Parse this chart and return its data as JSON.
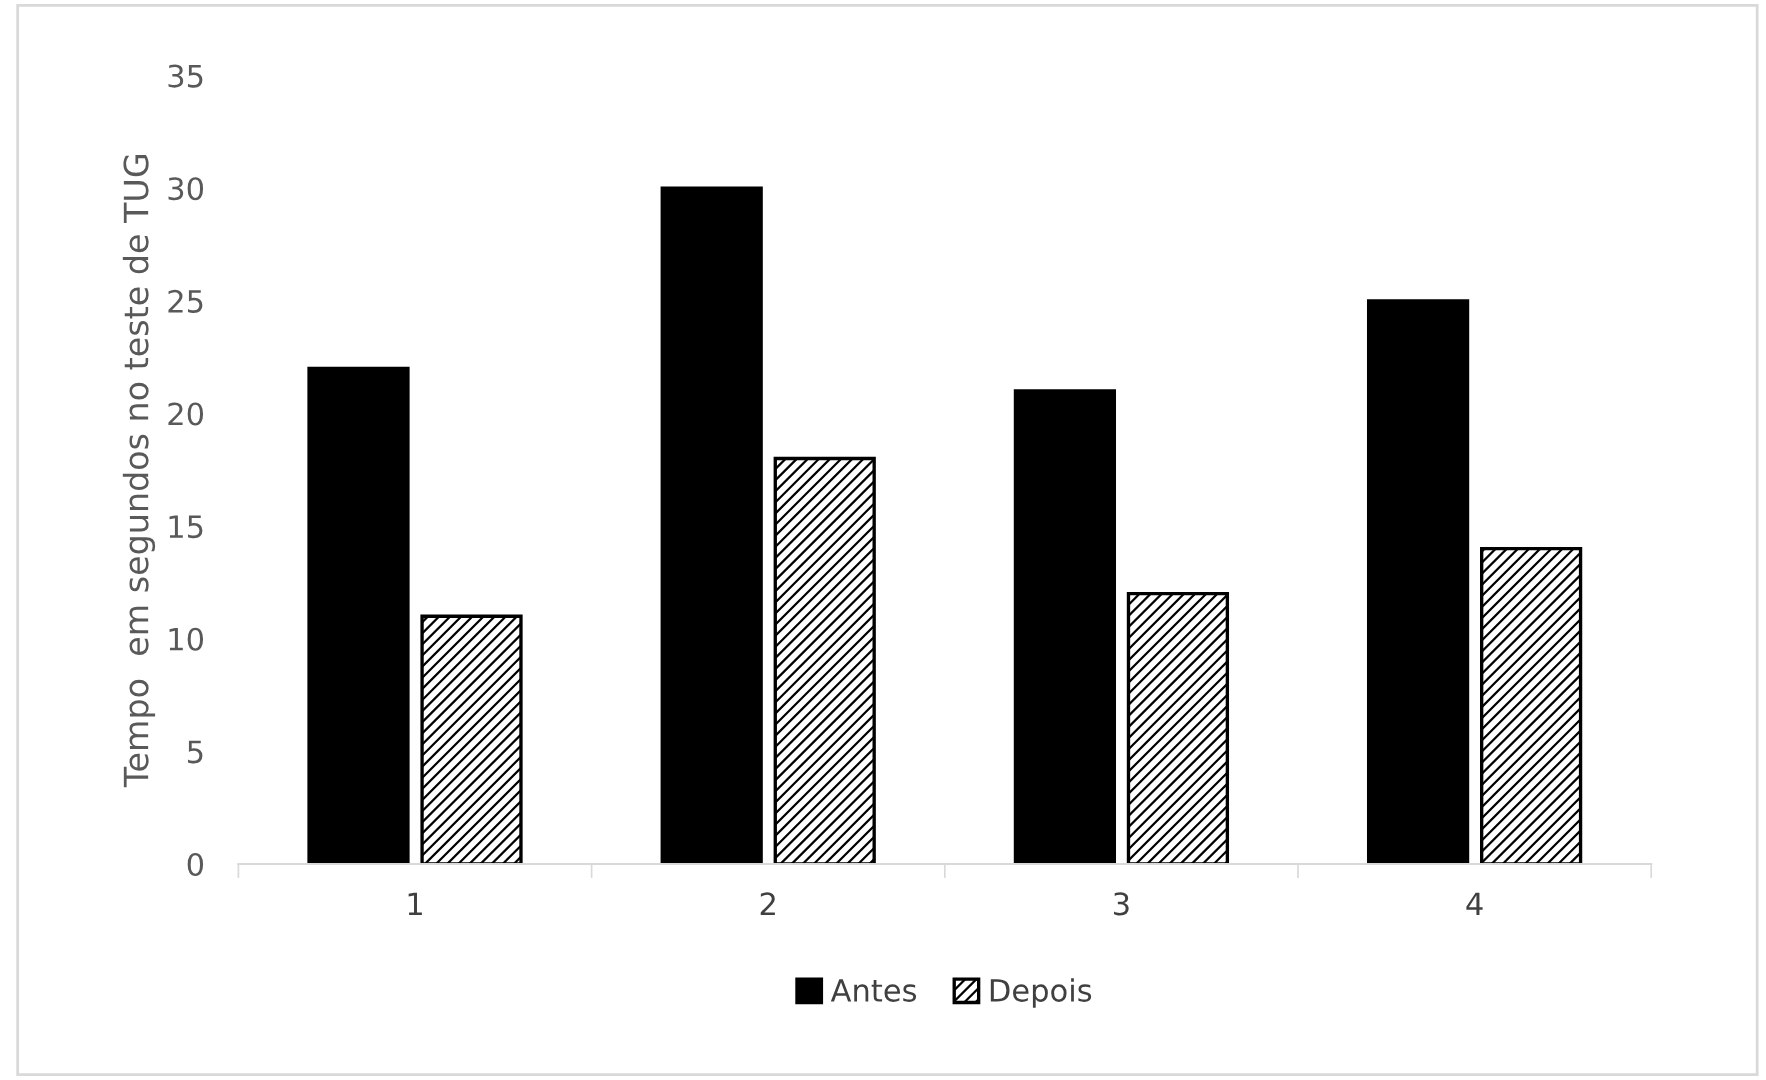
{
  "chart_data": {
    "type": "bar",
    "ylabel": "Tempo  em segundos no teste de TUG",
    "categories": [
      "1",
      "2",
      "3",
      "4"
    ],
    "series": [
      {
        "name": "Antes",
        "color": "#000000",
        "values": [
          22,
          30,
          21,
          25
        ]
      },
      {
        "name": "Depois",
        "color": "#000000",
        "values": [
          11,
          18,
          12,
          14
        ]
      }
    ],
    "ylim": [
      0,
      35
    ],
    "yticks": [
      0,
      5,
      10,
      15,
      20,
      25,
      30,
      35
    ],
    "grid": false,
    "legend": "bottom"
  }
}
